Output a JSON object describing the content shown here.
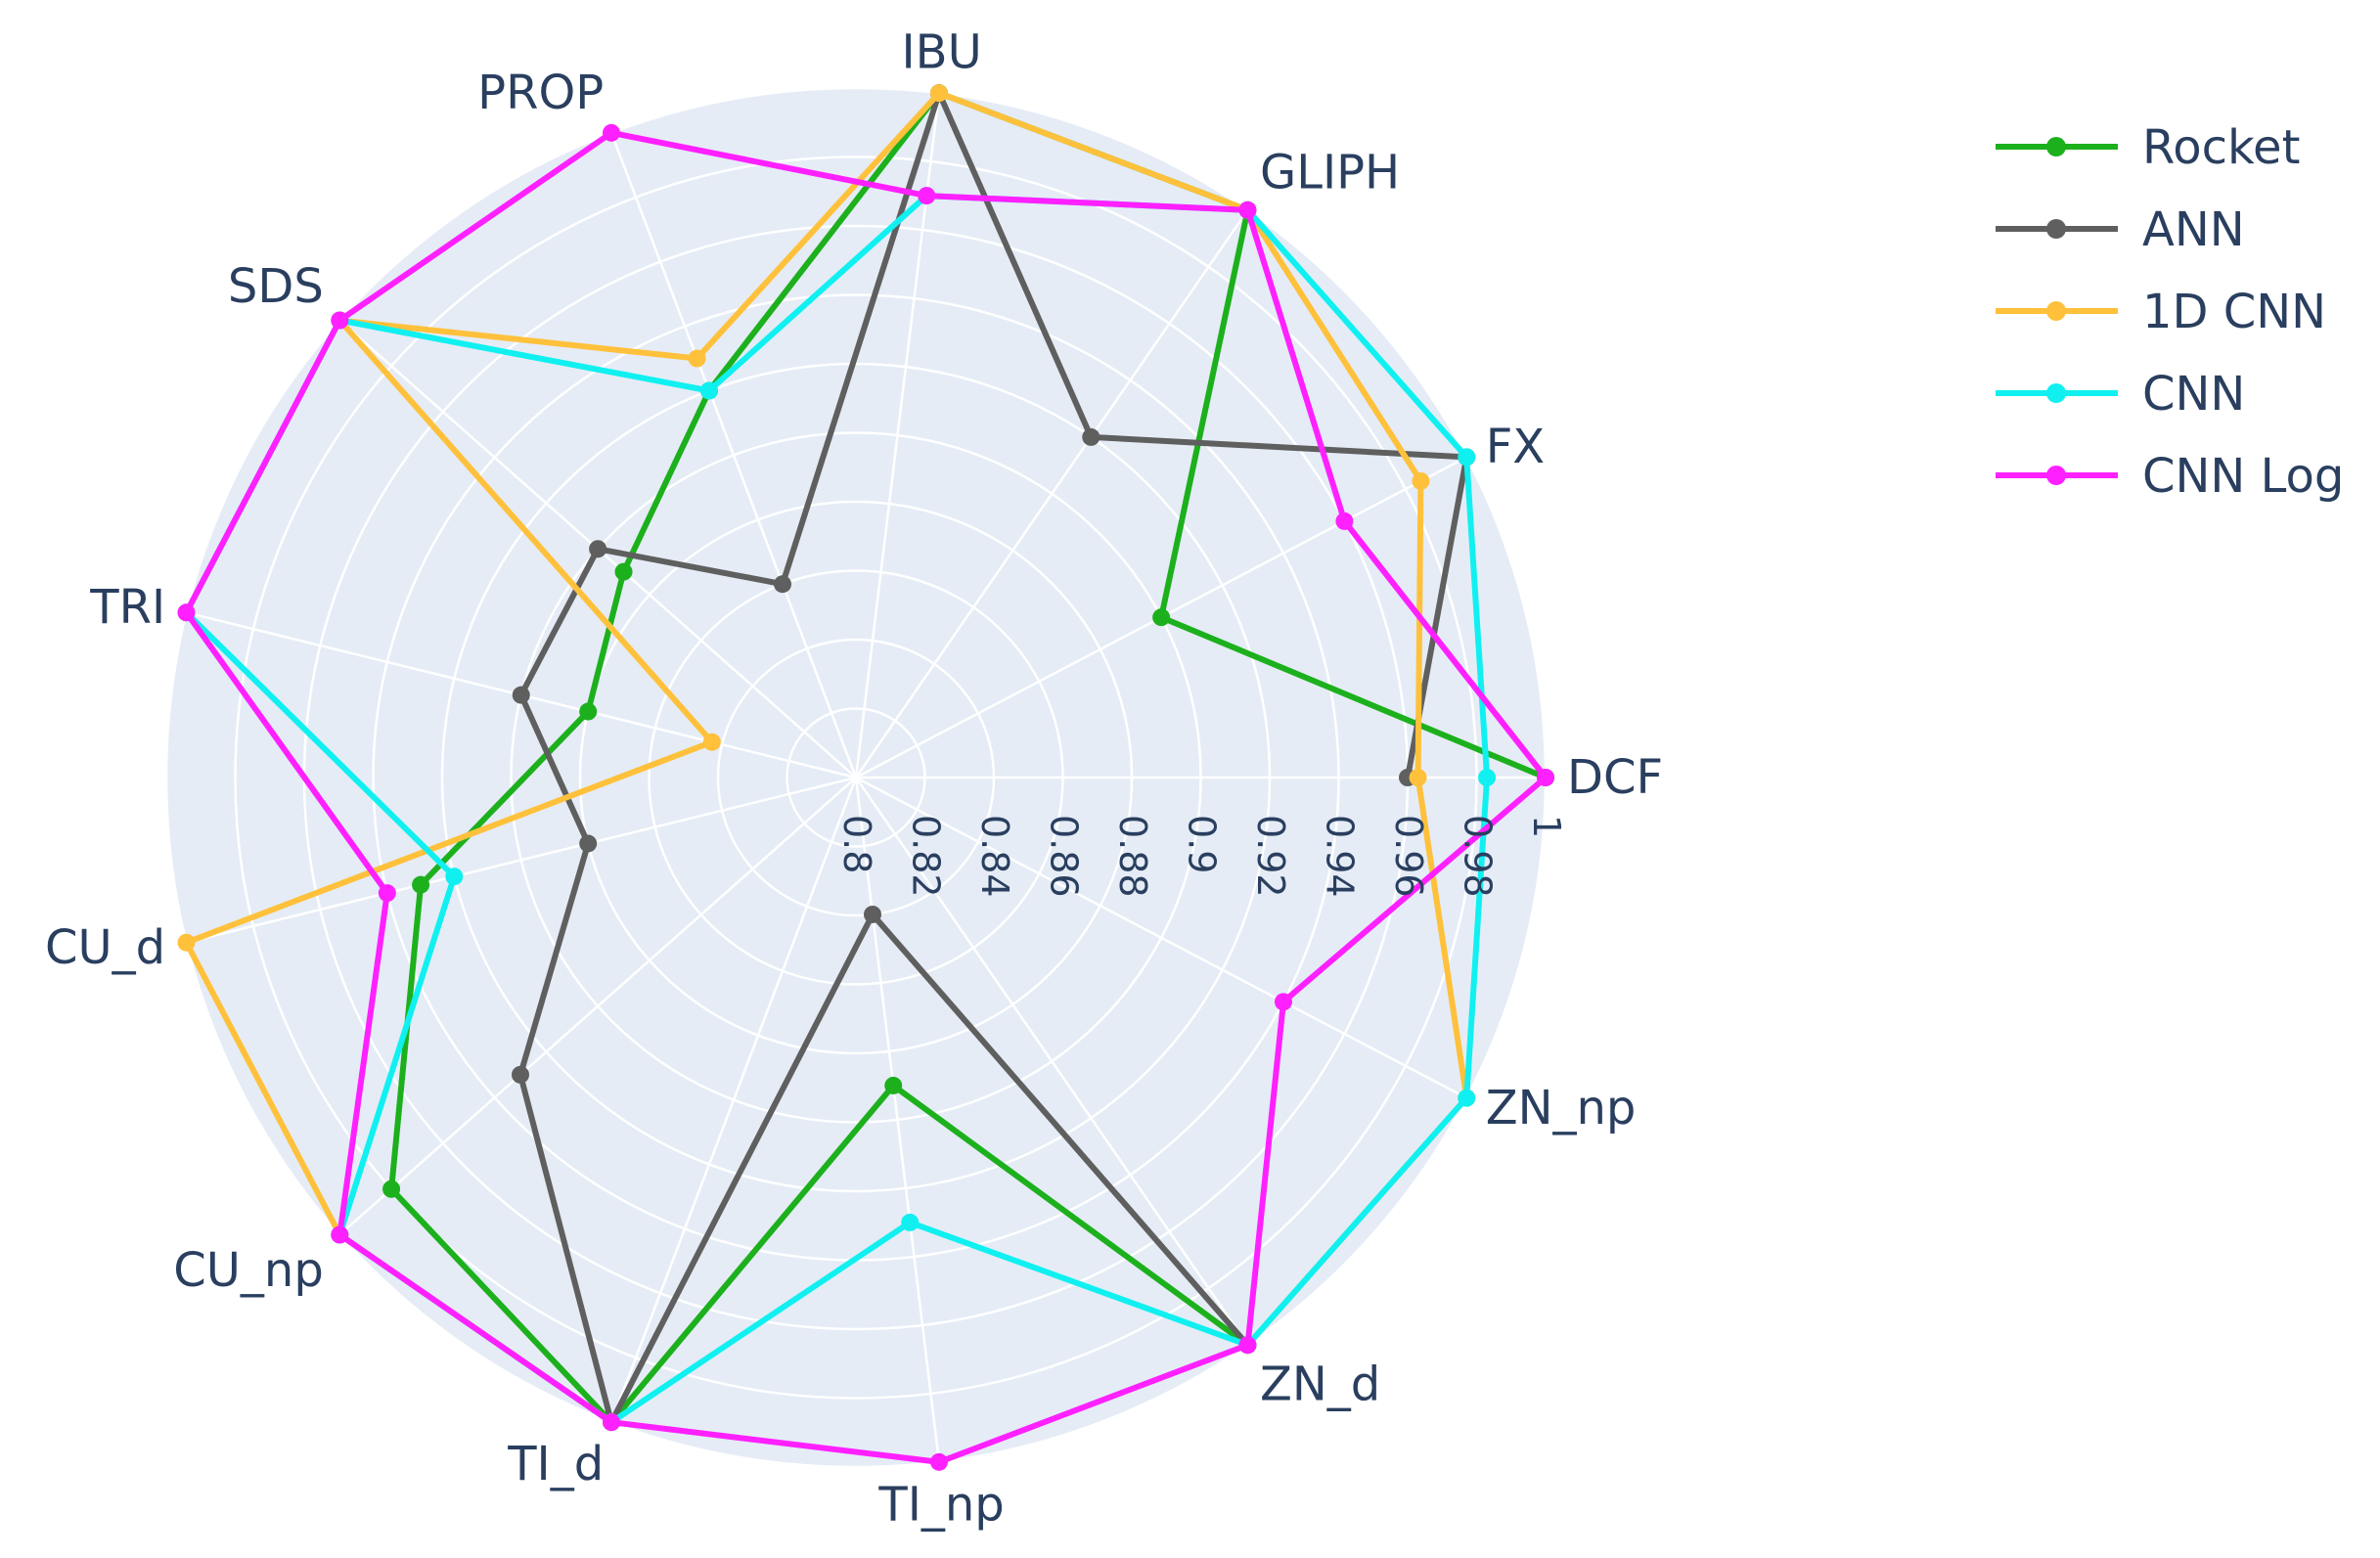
{
  "chart_data": {
    "type": "radar",
    "axes": [
      "DCF",
      "FX",
      "GLIPH",
      "IBU",
      "PROP",
      "SDS",
      "TRI",
      "CU_d",
      "CU_np",
      "TI_d",
      "TI_np",
      "ZN_d",
      "ZN_np"
    ],
    "radial_range": [
      0.8,
      1.0
    ],
    "radial_ticks": [
      "0.8",
      "0.82",
      "0.84",
      "0.86",
      "0.88",
      "0.9",
      "0.92",
      "0.94",
      "0.96",
      "0.98",
      "1"
    ],
    "series": [
      {
        "name": "Rocket",
        "color": "#1db01d",
        "values": [
          1.0,
          0.9,
          1.0,
          1.0,
          0.92,
          0.89,
          0.88,
          0.93,
          0.98,
          1.0,
          0.89,
          1.0,
          null
        ]
      },
      {
        "name": "ANN",
        "color": "#5f5f5f",
        "values": [
          0.96,
          1.0,
          0.92,
          1.0,
          0.86,
          0.9,
          0.9,
          0.88,
          0.93,
          1.0,
          0.84,
          1.0,
          null
        ]
      },
      {
        "name": "1D CNN",
        "color": "#ffc13b",
        "values": [
          0.963,
          0.985,
          1.0,
          1.0,
          0.93,
          1.0,
          0.843,
          1.0,
          1.0,
          1.0,
          null,
          1.0,
          1.0
        ]
      },
      {
        "name": "CNN",
        "color": "#11f0f0",
        "values": [
          0.983,
          1.0,
          1.0,
          0.97,
          0.92,
          1.0,
          1.0,
          0.92,
          1.0,
          1.0,
          0.93,
          1.0,
          1.0
        ]
      },
      {
        "name": "CNN Log",
        "color": "#ff20ff",
        "values": [
          1.0,
          0.96,
          1.0,
          0.97,
          1.0,
          1.0,
          1.0,
          0.94,
          1.0,
          1.0,
          1.0,
          1.0,
          0.94
        ]
      }
    ],
    "legend": "top-right",
    "grid": true
  }
}
